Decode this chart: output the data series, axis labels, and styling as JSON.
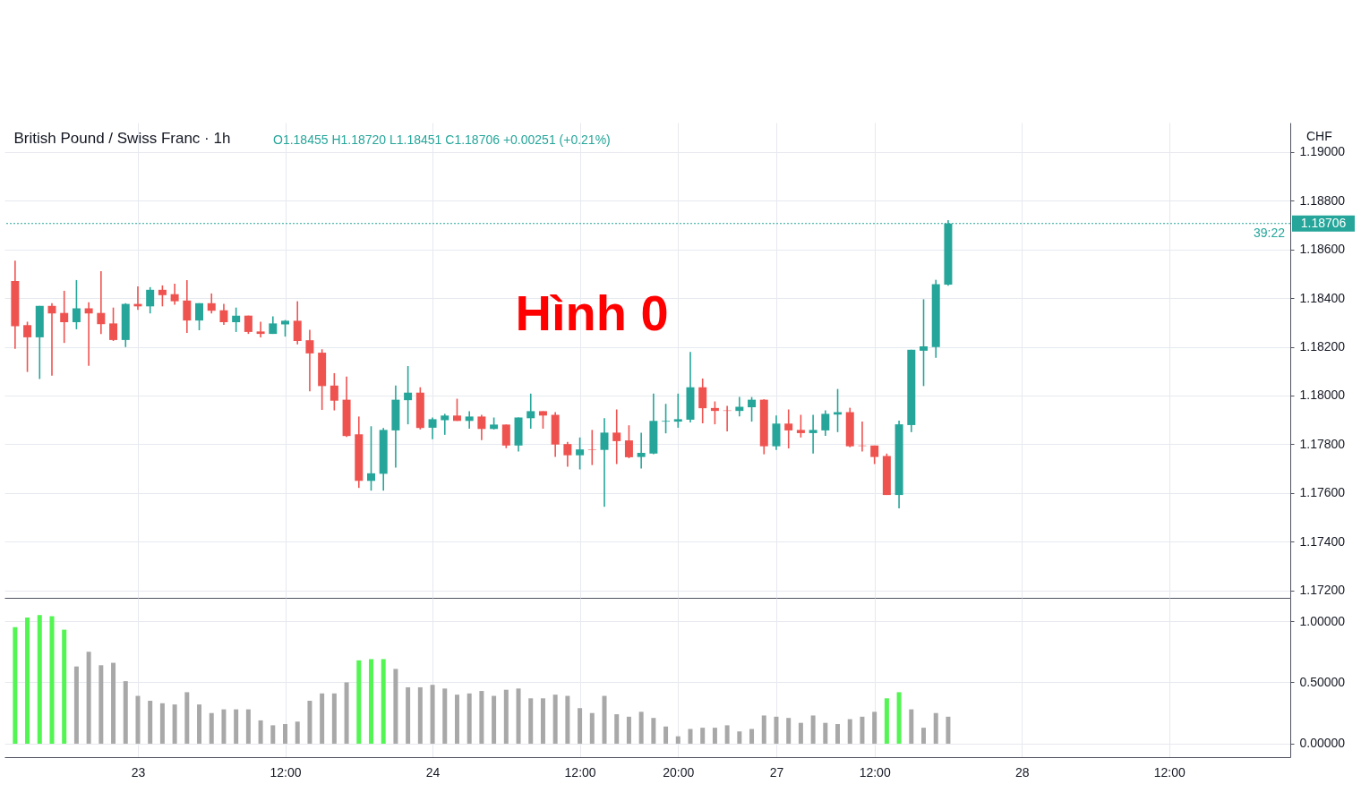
{
  "chart_data": [
    {
      "type": "candlestick",
      "title": "British Pound / Swiss Franc · 1h",
      "ylabel": "CHF",
      "annotations": [
        "O1.18455 H1.18720 L1.18451 C1.18706 +0.00251 (+0.21%)",
        "Hình 0",
        "39:22"
      ],
      "categories": [
        null,
        null,
        null,
        null,
        null,
        null,
        null,
        null,
        null,
        null,
        null,
        null,
        null,
        null,
        null,
        null,
        null,
        null,
        null,
        null,
        null,
        null,
        null,
        null,
        null,
        null,
        null,
        null,
        null,
        null,
        null,
        null,
        null,
        null,
        null,
        null,
        null,
        null,
        null,
        null,
        null,
        null,
        null,
        null,
        null,
        null,
        null,
        null,
        null,
        null,
        null,
        null,
        null,
        null,
        null,
        null,
        null,
        null,
        null,
        null,
        null,
        null,
        null,
        null,
        null,
        null,
        null,
        null,
        null,
        null,
        null,
        null,
        null,
        null,
        null,
        null,
        null,
        null,
        null,
        null,
        null,
        null,
        null,
        null,
        null,
        null,
        null,
        null,
        null,
        null,
        null,
        null,
        null,
        null,
        null,
        null,
        null,
        null,
        null,
        null,
        null,
        null,
        null,
        null
      ],
      "ohlc": [
        [
          1.1847,
          1.18554,
          1.18192,
          1.18285
        ],
        [
          1.18289,
          1.18303,
          1.18097,
          1.18239
        ],
        [
          1.18239,
          1.18368,
          1.18068,
          1.18368
        ],
        [
          1.18368,
          1.18379,
          1.18082,
          1.18337
        ],
        [
          1.18339,
          1.1843,
          1.18216,
          1.18301
        ],
        [
          1.18301,
          1.18474,
          1.18272,
          1.18358
        ],
        [
          1.18358,
          1.18383,
          1.18122,
          1.18337
        ],
        [
          1.18339,
          1.1851,
          1.18252,
          1.18293
        ],
        [
          1.18296,
          1.18361,
          1.18224,
          1.18228
        ],
        [
          1.18228,
          1.18379,
          1.18199,
          1.18376
        ],
        [
          1.18376,
          1.18448,
          1.18352,
          1.18366
        ],
        [
          1.18366,
          1.18445,
          1.18337,
          1.18434
        ],
        [
          1.18434,
          1.18452,
          1.18366,
          1.18412
        ],
        [
          1.18416,
          1.18459,
          1.18373,
          1.18387
        ],
        [
          1.1839,
          1.18474,
          1.18257,
          1.18308
        ],
        [
          1.18308,
          1.18379,
          1.18268,
          1.18379
        ],
        [
          1.18379,
          1.18419,
          1.18337,
          1.18348
        ],
        [
          1.1835,
          1.18376,
          1.1829,
          1.18301
        ],
        [
          1.18301,
          1.18361,
          1.18261,
          1.18328
        ],
        [
          1.18328,
          1.18328,
          1.18253,
          1.18261
        ],
        [
          1.18263,
          1.18303,
          1.18239,
          1.18253
        ],
        [
          1.18253,
          1.18325,
          1.18253,
          1.18296
        ],
        [
          1.18292,
          1.1831,
          1.18242,
          1.18307
        ],
        [
          1.18307,
          1.18387,
          1.1821,
          1.18224
        ],
        [
          1.18227,
          1.1827,
          1.18017,
          1.18173
        ],
        [
          1.18176,
          1.1819,
          1.17941,
          1.18039
        ],
        [
          1.18041,
          1.18092,
          1.17939,
          1.17979
        ],
        [
          1.17983,
          1.18078,
          1.1783,
          1.17834
        ],
        [
          1.17841,
          1.17914,
          1.17621,
          1.1765
        ],
        [
          1.1765,
          1.17874,
          1.1761,
          1.17681
        ],
        [
          1.17679,
          1.17867,
          1.1761,
          1.17859
        ],
        [
          1.17857,
          1.18041,
          1.17704,
          1.17983
        ],
        [
          1.17981,
          1.18121,
          1.17882,
          1.18012
        ],
        [
          1.18012,
          1.18034,
          1.17861,
          1.17867
        ],
        [
          1.17868,
          1.1791,
          1.17821,
          1.17903
        ],
        [
          1.17899,
          1.17925,
          1.17839,
          1.17918
        ],
        [
          1.17918,
          1.17987,
          1.17896,
          1.17896
        ],
        [
          1.17896,
          1.17936,
          1.17864,
          1.17914
        ],
        [
          1.17914,
          1.17921,
          1.17817,
          1.17863
        ],
        [
          1.17863,
          1.1791,
          1.17861,
          1.17881
        ],
        [
          1.17881,
          1.17881,
          1.17784,
          1.17795
        ],
        [
          1.17795,
          1.1791,
          1.1777,
          1.1791
        ],
        [
          1.17907,
          1.18008,
          1.17864,
          1.17936
        ],
        [
          1.17936,
          1.17936,
          1.17864,
          1.17918
        ],
        [
          1.17921,
          1.17932,
          1.17748,
          1.17799
        ],
        [
          1.17801,
          1.1781,
          1.17708,
          1.17755
        ],
        [
          1.17755,
          1.17828,
          1.17697,
          1.17779
        ],
        [
          1.17779,
          1.17859,
          1.17715,
          1.17777
        ],
        [
          1.17777,
          1.17907,
          1.17544,
          1.17848
        ],
        [
          1.17848,
          1.17943,
          1.17719,
          1.17813
        ],
        [
          1.17816,
          1.17878,
          1.17743,
          1.17747
        ],
        [
          1.17748,
          1.17848,
          1.17701,
          1.17765
        ],
        [
          1.17762,
          1.18008,
          1.17759,
          1.17896
        ],
        [
          1.17893,
          1.17966,
          1.17845,
          1.17896
        ],
        [
          1.17893,
          1.18008,
          1.17868,
          1.17903
        ],
        [
          1.17901,
          1.18179,
          1.1789,
          1.18034
        ],
        [
          1.18034,
          1.1807,
          1.17886,
          1.17948
        ],
        [
          1.17949,
          1.17976,
          1.17882,
          1.17937
        ],
        [
          1.17939,
          1.17958,
          1.17853,
          1.17937
        ],
        [
          1.17937,
          1.17994,
          1.17915,
          1.17954
        ],
        [
          1.17952,
          1.17994,
          1.17893,
          1.17983
        ],
        [
          1.17983,
          1.17985,
          1.17759,
          1.17792
        ],
        [
          1.17792,
          1.17918,
          1.17777,
          1.17885
        ],
        [
          1.17885,
          1.17943,
          1.17783,
          1.17857
        ],
        [
          1.17859,
          1.17921,
          1.17828,
          1.17846
        ],
        [
          1.17846,
          1.17921,
          1.17762,
          1.17859
        ],
        [
          1.17857,
          1.17939,
          1.17835,
          1.17925
        ],
        [
          1.17922,
          1.18027,
          1.1785,
          1.17932
        ],
        [
          1.17932,
          1.1795,
          1.17788,
          1.17792
        ],
        [
          1.17795,
          1.17893,
          1.1777,
          1.17793
        ],
        [
          1.17795,
          1.17795,
          1.17719,
          1.17748
        ],
        [
          1.17752,
          1.17762,
          1.17592,
          1.17592
        ],
        [
          1.17592,
          1.17897,
          1.17537,
          1.17882
        ],
        [
          1.17879,
          1.18188,
          1.1785,
          1.18188
        ],
        [
          1.18184,
          1.18395,
          1.18039,
          1.18202
        ],
        [
          1.18199,
          1.18475,
          1.18155,
          1.18457
        ],
        [
          1.18455,
          1.1872,
          1.18451,
          1.18706
        ],
        null,
        null,
        null,
        null,
        null,
        null,
        null,
        null,
        null,
        null,
        null,
        null,
        null,
        null,
        null,
        null,
        null,
        null,
        null,
        null,
        null,
        null,
        null,
        null,
        null,
        null,
        null
      ],
      "colors": [
        "#ef5350",
        "#ef5350",
        "#26a69a",
        "#ef5350",
        "#ef5350",
        "#26a69a",
        "#ef5350",
        "#ef5350",
        "#ef5350",
        "#26a69a",
        "#ef5350",
        "#26a69a",
        "#ef5350",
        "#ef5350",
        "#ef5350",
        "#26a69a",
        "#ef5350",
        "#ef5350",
        "#26a69a",
        "#ef5350",
        "#ef5350",
        "#26a69a",
        "#26a69a",
        "#ef5350",
        "#ef5350",
        "#ef5350",
        "#ef5350",
        "#ef5350",
        "#ef5350",
        "#26a69a",
        "#26a69a",
        "#26a69a",
        "#26a69a",
        "#ef5350",
        "#26a69a",
        "#26a69a",
        "#ef5350",
        "#26a69a",
        "#ef5350",
        "#26a69a",
        "#ef5350",
        "#26a69a",
        "#26a69a",
        "#ef5350",
        "#ef5350",
        "#ef5350",
        "#26a69a",
        "#ef5350",
        "#26a69a",
        "#ef5350",
        "#ef5350",
        "#26a69a",
        "#26a69a",
        "#26a69a",
        "#26a69a",
        "#26a69a",
        "#ef5350",
        "#ef5350",
        "#ef5350",
        "#26a69a",
        "#26a69a",
        "#ef5350",
        "#26a69a",
        "#ef5350",
        "#ef5350",
        "#26a69a",
        "#26a69a",
        "#26a69a",
        "#ef5350",
        "#ef5350",
        "#ef5350",
        "#ef5350",
        "#26a69a",
        "#26a69a",
        "#26a69a",
        "#26a69a",
        "#26a69a",
        null,
        null,
        null,
        null,
        null,
        null,
        null,
        null,
        null,
        null,
        null,
        null,
        null,
        null,
        null,
        null,
        null,
        null,
        null,
        null,
        null,
        null,
        null,
        null,
        null,
        null,
        null
      ],
      "ylim": [
        1.1717,
        1.1912
      ],
      "yticks": [
        {
          "value": 1.172,
          "label": "1.17200"
        },
        {
          "value": 1.174,
          "label": "1.17400"
        },
        {
          "value": 1.176,
          "label": "1.17600"
        },
        {
          "value": 1.178,
          "label": "1.17800"
        },
        {
          "value": 1.18,
          "label": "1.18000"
        },
        {
          "value": 1.182,
          "label": "1.18200"
        },
        {
          "value": 1.184,
          "label": "1.18400"
        },
        {
          "value": 1.186,
          "label": "1.18600"
        },
        {
          "value": 1.188,
          "label": "1.18800"
        },
        {
          "value": 1.19,
          "label": "1.19000"
        }
      ],
      "grid": true,
      "ref_lines": [
        {
          "axis": "y",
          "value": 1.18706,
          "label": "1.18706",
          "color": "#26a69a",
          "line_style": "dotted"
        }
      ]
    },
    {
      "type": "bar",
      "categories": [
        null,
        null,
        null,
        null,
        null,
        null,
        null,
        null,
        null,
        null,
        "23",
        null,
        null,
        null,
        null,
        null,
        null,
        null,
        null,
        null,
        null,
        null,
        "12:00",
        null,
        null,
        null,
        null,
        null,
        null,
        null,
        null,
        null,
        null,
        null,
        "24",
        null,
        null,
        null,
        null,
        null,
        null,
        null,
        null,
        null,
        null,
        null,
        "12:00",
        null,
        null,
        null,
        null,
        null,
        null,
        null,
        "20:00",
        null,
        null,
        null,
        null,
        null,
        null,
        null,
        "27",
        null,
        null,
        null,
        null,
        null,
        null,
        null,
        "12:00",
        null,
        null,
        null,
        null,
        null,
        null,
        null,
        null,
        null,
        null,
        null,
        "28",
        null,
        null,
        null,
        null,
        null,
        null,
        null,
        null,
        null,
        null,
        null,
        "12:00",
        null,
        null,
        null,
        null,
        null,
        null,
        null,
        null,
        null
      ],
      "values": [
        0.95,
        1.03,
        1.05,
        1.04,
        0.93,
        0.63,
        0.75,
        0.64,
        0.66,
        0.51,
        0.39,
        0.35,
        0.33,
        0.32,
        0.42,
        0.32,
        0.25,
        0.28,
        0.28,
        0.28,
        0.19,
        0.15,
        0.16,
        0.18,
        0.35,
        0.41,
        0.41,
        0.5,
        0.68,
        0.69,
        0.69,
        0.61,
        0.46,
        0.46,
        0.48,
        0.45,
        0.4,
        0.41,
        0.43,
        0.39,
        0.44,
        0.45,
        0.37,
        0.37,
        0.4,
        0.39,
        0.29,
        0.25,
        0.39,
        0.24,
        0.22,
        0.26,
        0.21,
        0.14,
        0.06,
        0.12,
        0.13,
        0.13,
        0.15,
        0.1,
        0.12,
        0.23,
        0.22,
        0.21,
        0.17,
        0.23,
        0.17,
        0.16,
        0.2,
        0.22,
        0.26,
        0.37,
        0.42,
        0.28,
        0.13,
        0.25,
        0.22,
        null,
        null,
        null,
        null,
        null,
        null,
        null,
        null,
        null,
        null,
        null,
        null,
        null,
        null,
        null,
        null,
        null,
        null,
        null,
        null,
        null,
        null,
        null,
        null,
        null,
        null,
        null
      ],
      "colors": [
        "#52f552",
        "#52f552",
        "#52f552",
        "#52f552",
        "#52f552",
        "#a8a8a8",
        "#a8a8a8",
        "#a8a8a8",
        "#a8a8a8",
        "#a8a8a8",
        "#a8a8a8",
        "#a8a8a8",
        "#a8a8a8",
        "#a8a8a8",
        "#a8a8a8",
        "#a8a8a8",
        "#a8a8a8",
        "#a8a8a8",
        "#a8a8a8",
        "#a8a8a8",
        "#a8a8a8",
        "#a8a8a8",
        "#a8a8a8",
        "#a8a8a8",
        "#a8a8a8",
        "#a8a8a8",
        "#a8a8a8",
        "#a8a8a8",
        "#52f552",
        "#52f552",
        "#52f552",
        "#a8a8a8",
        "#a8a8a8",
        "#a8a8a8",
        "#a8a8a8",
        "#a8a8a8",
        "#a8a8a8",
        "#a8a8a8",
        "#a8a8a8",
        "#a8a8a8",
        "#a8a8a8",
        "#a8a8a8",
        "#a8a8a8",
        "#a8a8a8",
        "#a8a8a8",
        "#a8a8a8",
        "#a8a8a8",
        "#a8a8a8",
        "#a8a8a8",
        "#a8a8a8",
        "#a8a8a8",
        "#a8a8a8",
        "#a8a8a8",
        "#a8a8a8",
        "#a8a8a8",
        "#a8a8a8",
        "#a8a8a8",
        "#a8a8a8",
        "#a8a8a8",
        "#a8a8a8",
        "#a8a8a8",
        "#a8a8a8",
        "#a8a8a8",
        "#a8a8a8",
        "#a8a8a8",
        "#a8a8a8",
        "#a8a8a8",
        "#a8a8a8",
        "#a8a8a8",
        "#a8a8a8",
        "#a8a8a8",
        "#52f552",
        "#52f552",
        "#a8a8a8",
        "#a8a8a8",
        "#a8a8a8",
        "#a8a8a8",
        null,
        null,
        null,
        null,
        null,
        null,
        null,
        null,
        null,
        null,
        null,
        null,
        null,
        null,
        null,
        null,
        null,
        null,
        null,
        null,
        null,
        null,
        null,
        null,
        null,
        null,
        null
      ],
      "ylim": [
        -0.11,
        1.19
      ],
      "yticks": [
        {
          "value": 0,
          "label": "0.00000"
        },
        {
          "value": 0.5,
          "label": "0.50000"
        },
        {
          "value": 1,
          "label": "1.00000"
        }
      ],
      "grid": true
    }
  ]
}
